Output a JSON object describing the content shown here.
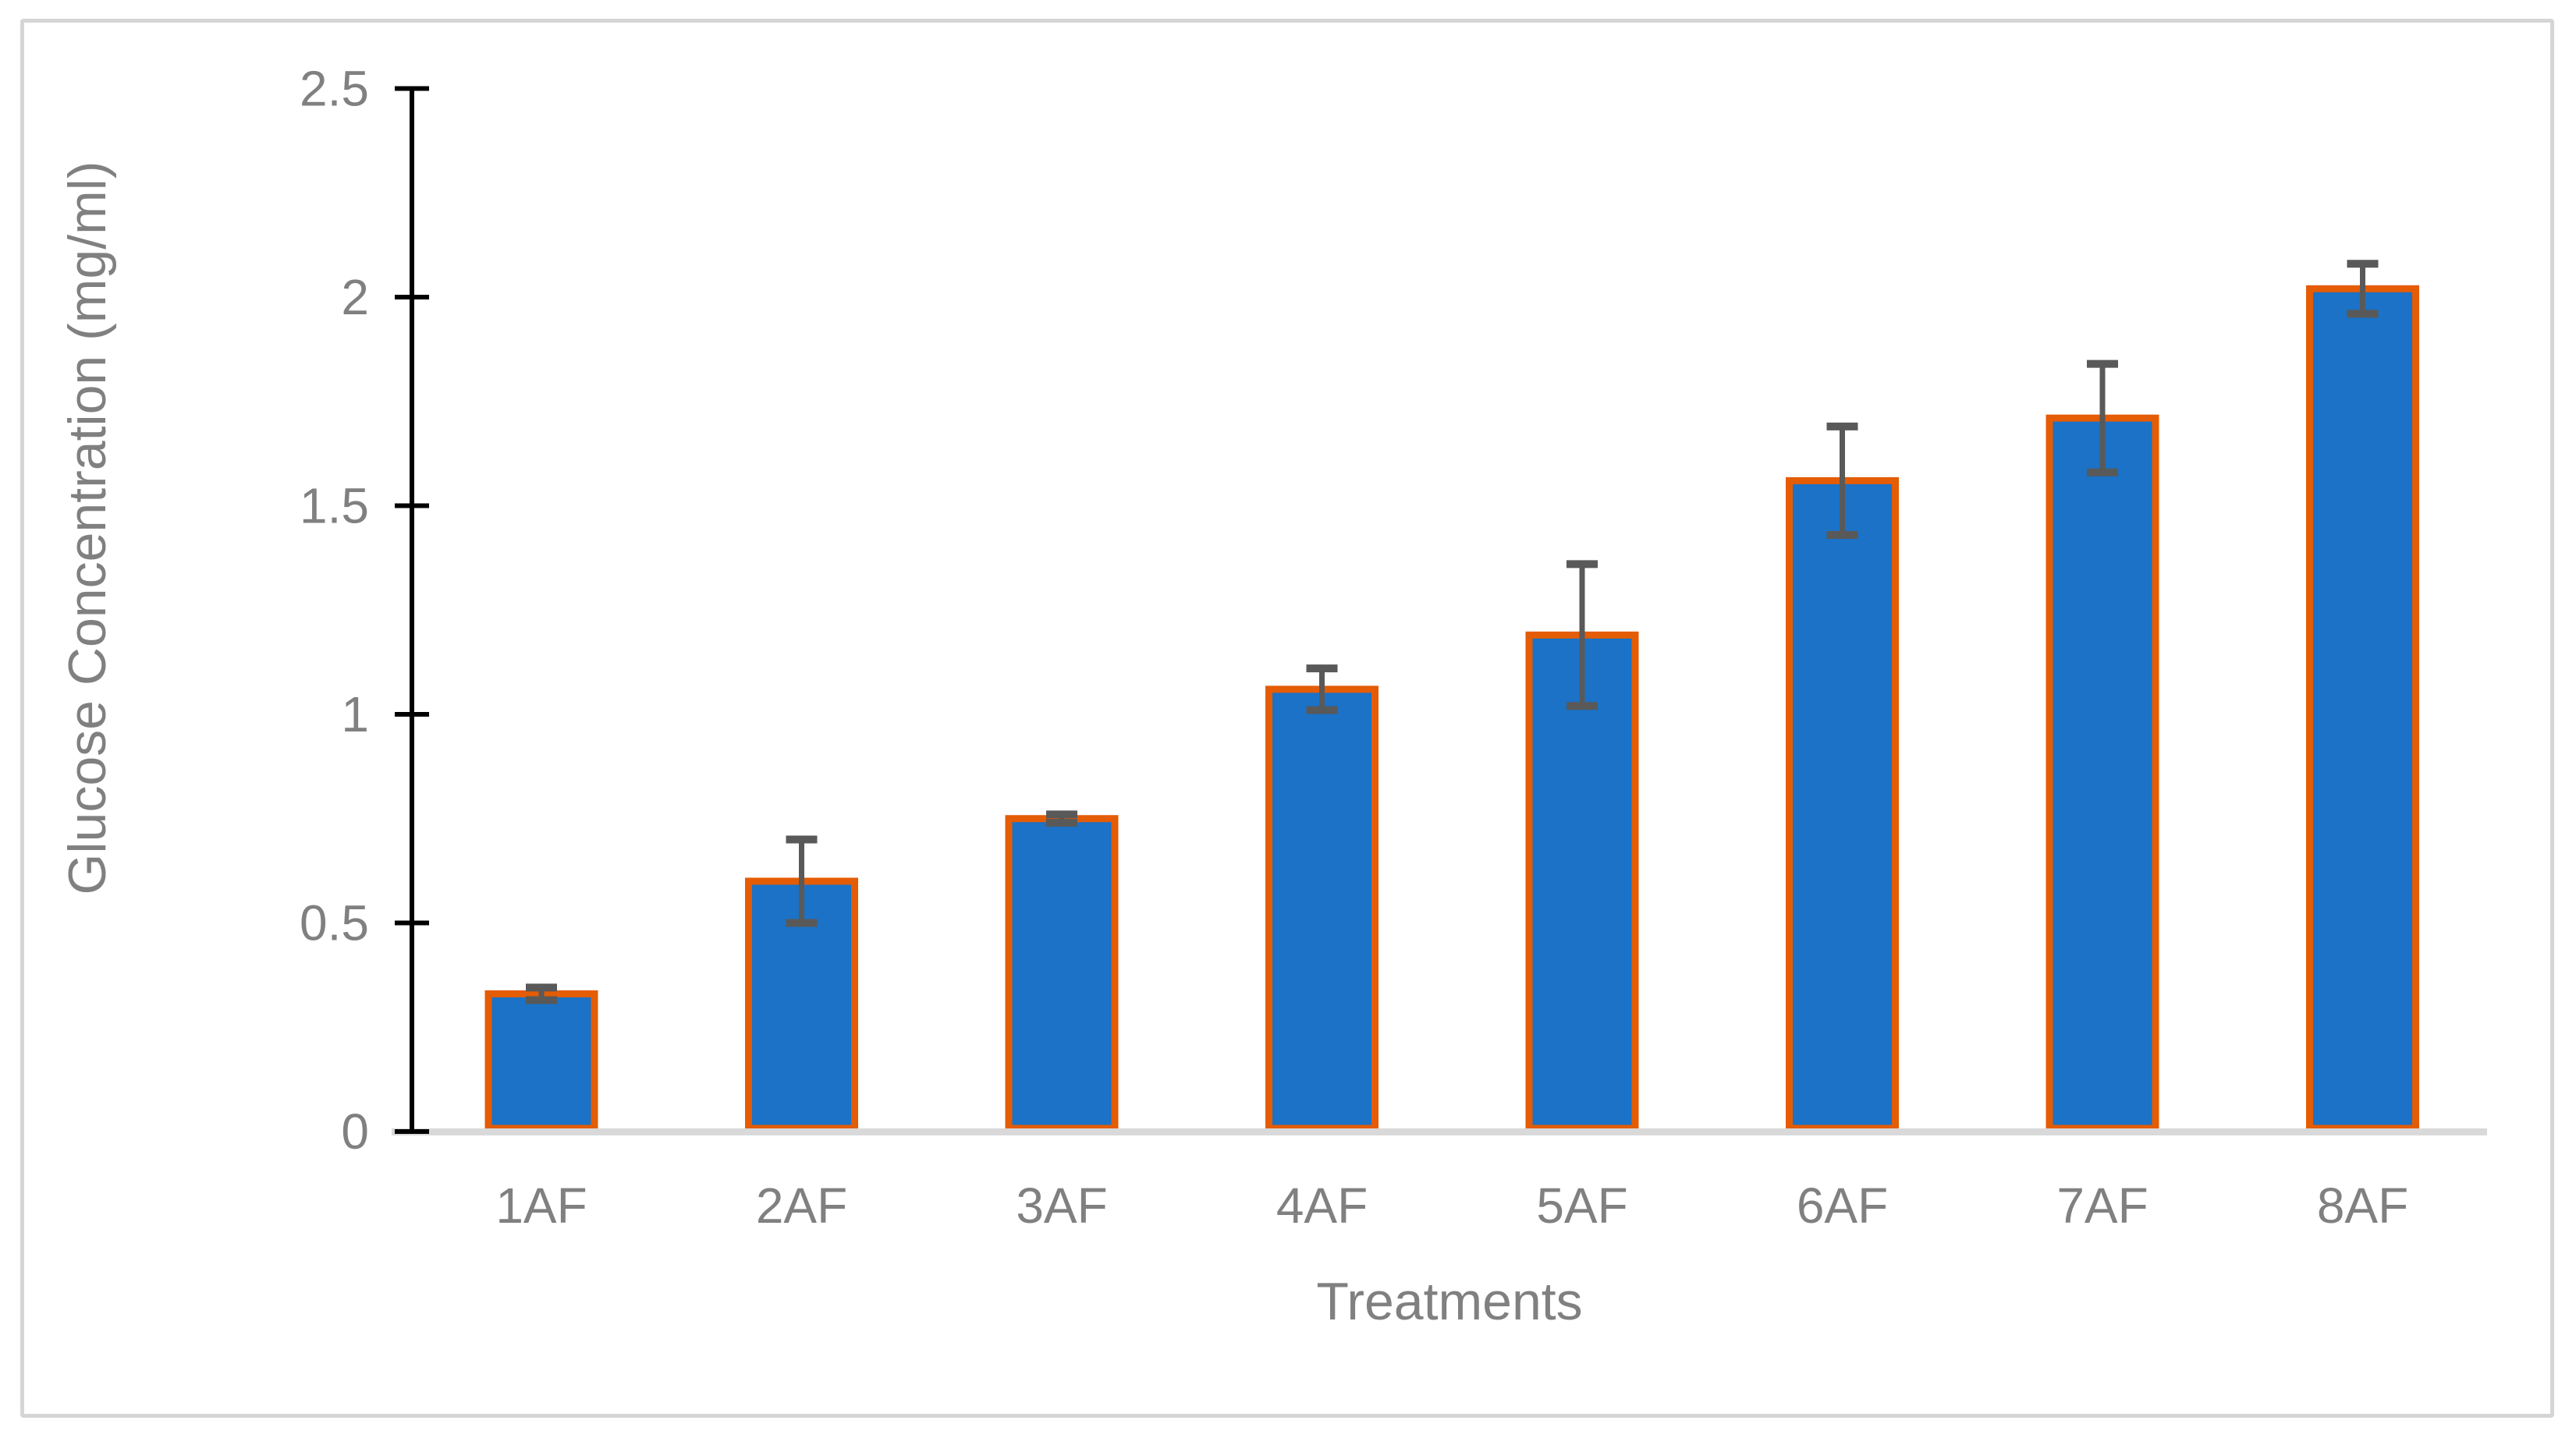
{
  "figure": {
    "background": "#FFFFFF",
    "border_color": "#D5D5D5"
  },
  "chart_data": {
    "type": "bar",
    "title": "",
    "categories": [
      "1AF",
      "2AF",
      "3AF",
      "4AF",
      "5AF",
      "6AF",
      "7AF",
      "8AF"
    ],
    "values": [
      0.33,
      0.6,
      0.75,
      1.06,
      1.19,
      1.56,
      1.71,
      2.02
    ],
    "error_bars": [
      0.015,
      0.1,
      0.01,
      0.05,
      0.17,
      0.13,
      0.13,
      0.06
    ],
    "xlabel": "Treatments",
    "ylabel": "Glucose Concentration (mg/ml)",
    "ylim": [
      0,
      2.5
    ],
    "ytick_step": 0.5,
    "ytick_labels": [
      "0",
      "0.5",
      "1",
      "1.5",
      "2",
      "2.5"
    ],
    "grid": false,
    "legend": false,
    "colors": {
      "bar_fill": "#1B72C6",
      "bar_border": "#E45C04",
      "error_bar": "#595959",
      "y_axis": "#000000",
      "x_baseline": "#D9D9D9",
      "text": "#808080"
    }
  }
}
